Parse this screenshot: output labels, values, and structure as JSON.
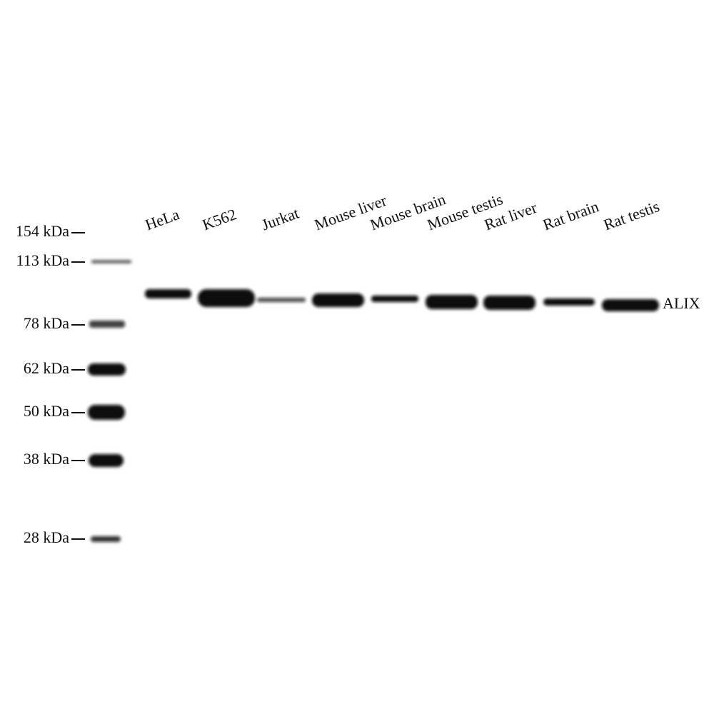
{
  "lanes": [
    "HeLa",
    "K562",
    "Jurkat",
    "Mouse liver",
    "Mouse brain",
    "Mouse testis",
    "Rat liver",
    "Rat brain",
    "Rat testis"
  ],
  "markers": [
    "154 kDa",
    "113 kDa",
    "78 kDa",
    "62 kDa",
    "50 kDa",
    "38 kDa",
    "28 kDa"
  ],
  "band_label": "ALIX"
}
